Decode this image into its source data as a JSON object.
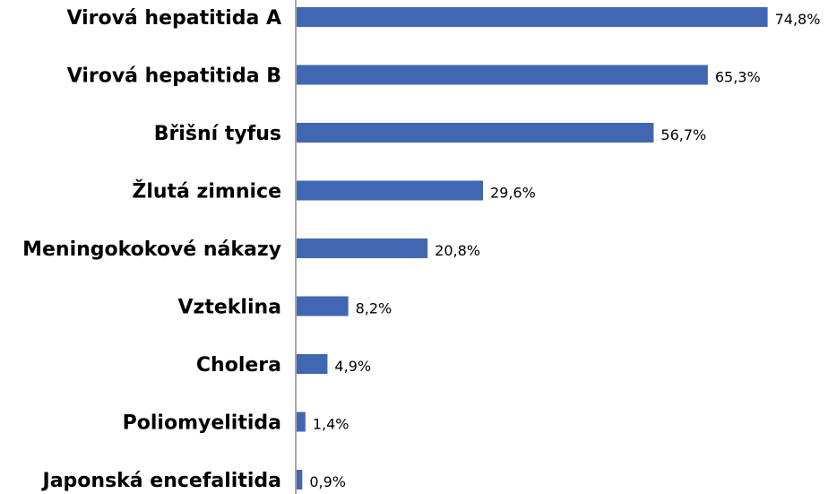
{
  "chart_data": {
    "type": "bar",
    "orientation": "horizontal",
    "categories": [
      "Virová hepatitida A",
      "Virová hepatitida B",
      "Břišní tyfus",
      "Žlutá zimnice",
      "Meningokokové nákazy",
      "Vzteklina",
      "Cholera",
      "Poliomyelitida",
      "Japonská encefalitida"
    ],
    "values": [
      74.8,
      65.3,
      56.7,
      29.6,
      20.8,
      8.2,
      4.9,
      1.4,
      0.9
    ],
    "value_labels": [
      "74,8%",
      "65,3%",
      "56,7%",
      "29,6%",
      "20,8%",
      "8,2%",
      "4,9%",
      "1,4%",
      "0,9%"
    ],
    "unit": "%",
    "title": "",
    "xlabel": "",
    "ylabel": "",
    "xlim": [
      0,
      75
    ],
    "grid": false,
    "legend": "none",
    "bar_color": "#4267b2",
    "axis_color": "#8c8c8c"
  }
}
